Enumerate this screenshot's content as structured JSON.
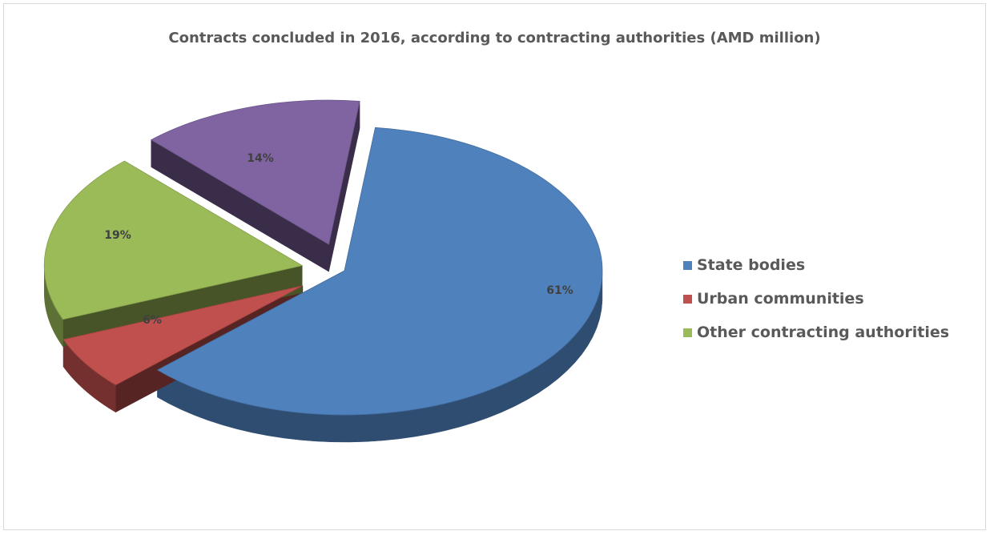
{
  "chart_data": {
    "type": "pie",
    "title": "Contracts concluded in 2016, according to contracting authorities (AMD million)",
    "slices": [
      {
        "name": "State bodies",
        "value": 61,
        "label": "61%",
        "color": "#4f81bd",
        "in_legend": true
      },
      {
        "name": "Urban communities",
        "value": 6,
        "label": "6%",
        "color": "#c0504d",
        "in_legend": true
      },
      {
        "name": "Other contracting authorities",
        "value": 19,
        "label": "19%",
        "color": "#9bbb59",
        "in_legend": true
      },
      {
        "name": "",
        "value": 14,
        "label": "14%",
        "color": "#8064a2",
        "in_legend": false
      }
    ],
    "legend_position": "right",
    "exploded": true,
    "three_d": true
  }
}
